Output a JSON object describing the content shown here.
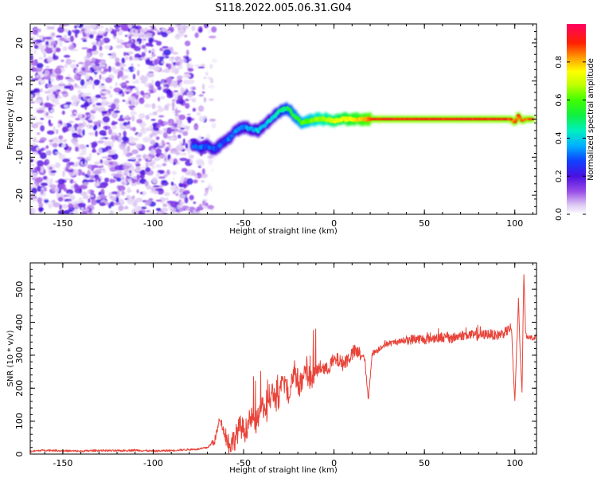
{
  "title": "S118.2022.005.06.31.G04",
  "chart_data": [
    {
      "type": "heatmap",
      "xlabel": "Height of straight line (km)",
      "ylabel": "Frequency (Hz)",
      "xlim": [
        -168,
        112
      ],
      "ylim": [
        -25,
        25
      ],
      "xticks": [
        -150,
        -100,
        -50,
        0,
        50,
        100
      ],
      "yticks": [
        -20,
        -10,
        0,
        10,
        20
      ],
      "colorbar": {
        "label": "Normalized spectral amplitude",
        "range": [
          0,
          1
        ],
        "ticks": [
          0.0,
          0.2,
          0.4,
          0.6,
          0.8
        ]
      },
      "ridge": {
        "x": [
          -78,
          -74,
          -70,
          -66,
          -62,
          -58,
          -54,
          -50,
          -46,
          -42,
          -38,
          -34,
          -30,
          -26,
          -22,
          -18,
          -14,
          -10,
          -5,
          0,
          5,
          10,
          20,
          30,
          50,
          70,
          98,
          100,
          102,
          104,
          106,
          110
        ],
        "y": [
          -7,
          -7.5,
          -7,
          -8,
          -6.5,
          -5,
          -3,
          -2,
          -2.5,
          -3,
          -1.5,
          0.5,
          2,
          3,
          1,
          -1,
          -0.5,
          0,
          0,
          -0.5,
          0,
          0,
          0,
          0,
          0,
          0,
          0,
          -1,
          1,
          -0.5,
          0,
          0
        ]
      },
      "noise_region_x": [
        -168,
        -63
      ]
    },
    {
      "type": "line",
      "xlabel": "Height of straight line (km)",
      "ylabel": "SNR (10 * v/v)",
      "xlim": [
        -168,
        112
      ],
      "ylim": [
        0,
        580
      ],
      "xticks": [
        -150,
        -100,
        -50,
        0,
        50,
        100
      ],
      "yticks": [
        0,
        100,
        200,
        300,
        400,
        500
      ],
      "color": "#e8443a",
      "series": [
        {
          "x": [
            -168,
            -160,
            -150,
            -140,
            -130,
            -120,
            -110,
            -100,
            -90,
            -80,
            -75,
            -70,
            -66,
            -63,
            -61,
            -58,
            -55,
            -52,
            -49,
            -46,
            -43,
            -40,
            -37,
            -34,
            -31,
            -28,
            -25,
            -22,
            -19,
            -16,
            -13,
            -10,
            -7,
            -4,
            -1,
            2,
            5,
            8,
            11,
            14,
            17,
            19,
            21,
            24,
            27,
            30,
            35,
            40,
            45,
            50,
            55,
            60,
            65,
            70,
            75,
            80,
            85,
            90,
            95,
            98,
            100,
            102,
            103,
            104,
            105,
            106,
            108,
            110,
            112
          ],
          "y": [
            8,
            12,
            10,
            9,
            11,
            10,
            12,
            9,
            11,
            14,
            15,
            20,
            40,
            110,
            70,
            30,
            45,
            85,
            70,
            110,
            95,
            150,
            130,
            190,
            150,
            230,
            180,
            260,
            200,
            240,
            230,
            250,
            265,
            255,
            280,
            285,
            275,
            290,
            310,
            305,
            290,
            160,
            305,
            315,
            330,
            335,
            340,
            345,
            350,
            348,
            352,
            355,
            350,
            360,
            362,
            358,
            365,
            360,
            370,
            385,
            160,
            470,
            300,
            190,
            560,
            360,
            355,
            352,
            358
          ]
        }
      ]
    }
  ]
}
